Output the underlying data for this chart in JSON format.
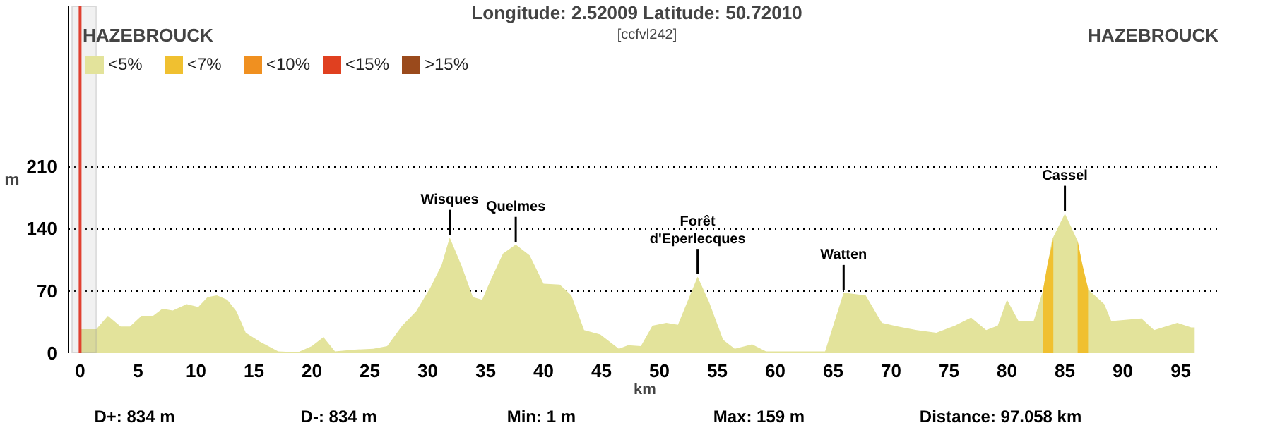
{
  "chart_data": {
    "type": "area",
    "title": "HAZEBROUCK",
    "subtitle": "HAZEBROUCK",
    "xlabel": "km",
    "ylabel": "m",
    "annotations": [
      "Longitude: 2.52009",
      "Latitude: 50.72010",
      "[ccfvl242]",
      "D+: 834 m",
      "D-: 834 m",
      "Min: 1 m",
      "Max: 159 m",
      "Distance: 97.058 km",
      {
        "text": "Wisques",
        "x": 31.9,
        "y": 130
      },
      {
        "text": "Quelmes",
        "x": 37.6,
        "y": 122
      },
      {
        "text": "Forêt\nd'Eperlecques",
        "x": 53.3,
        "y": 86
      },
      {
        "text": "Watten",
        "x": 65.9,
        "y": 68
      },
      {
        "text": "Cassel",
        "x": 85,
        "y": 157
      }
    ],
    "series": [
      {
        "name": "<5%",
        "color": "#e3e39b",
        "x": [
          0,
          0.4,
          1.4,
          2.4,
          3.5,
          4.3,
          5.3,
          6.3,
          7.1,
          8,
          9.2,
          10.2,
          11,
          11.8,
          12.7,
          13.5,
          14.3,
          15.5,
          17.1,
          18.8,
          20,
          21,
          22,
          23.7,
          25.3,
          26.5,
          27.8,
          29,
          30.2,
          31.2,
          31.9,
          32.9,
          33.9,
          34.7,
          35.5,
          36.5,
          37.6,
          38.8,
          40,
          41.4,
          42.4,
          43.5,
          44.9,
          46.5,
          47.3,
          48.4,
          49.4,
          50.6,
          51.6,
          53.3,
          54.3,
          55.5,
          56.5,
          58,
          59.2,
          61.2,
          64.3,
          65.9,
          67.8,
          69.2,
          70.6,
          72.2,
          73.9,
          75.5,
          76.9,
          78.2,
          79.2,
          80,
          81,
          82.3,
          83.1,
          83.9,
          85,
          86.1,
          86.9,
          88.4,
          89,
          91.6,
          92.7,
          94.7,
          95.9,
          96.2
        ],
        "values": [
          27,
          27,
          27,
          42,
          30,
          30,
          42,
          42,
          50,
          48,
          55,
          52,
          63,
          65,
          60,
          47,
          23,
          13,
          2,
          1,
          8,
          18,
          2,
          4,
          5,
          8,
          31,
          47,
          73,
          99,
          130,
          99,
          63,
          60,
          84,
          112,
          122,
          110,
          78,
          77,
          65,
          26,
          21,
          5,
          9,
          8,
          31,
          34,
          32,
          86,
          57,
          15,
          5,
          10,
          2,
          2,
          2,
          68,
          65,
          34,
          30,
          26,
          23,
          31,
          40,
          26,
          31,
          60,
          36,
          36,
          70,
          128,
          157,
          126,
          73,
          55,
          36,
          39,
          26,
          34,
          29,
          29
        ]
      },
      {
        "name": "<7%",
        "color": "#f0c030",
        "x": [
          83.1,
          83.5,
          84.0,
          84.05,
          86.1,
          86.5,
          87.0
        ],
        "values": [
          70,
          100,
          128,
          null,
          126,
          100,
          73
        ]
      },
      {
        "name": "<10%",
        "color": "#f09020"
      },
      {
        "name": "<15%",
        "color": "#e04020"
      },
      {
        "name": ">15%",
        "color": "#9a4a1c"
      }
    ],
    "xlim": [
      -1,
      98.5
    ],
    "ylim": [
      0,
      390
    ],
    "xticks": [
      0,
      5,
      10,
      15,
      20,
      25,
      30,
      35,
      40,
      45,
      50,
      55,
      60,
      65,
      70,
      75,
      80,
      85,
      90,
      95
    ],
    "yticks": [
      0,
      70,
      140,
      210
    ],
    "grid": "y",
    "legend": "top left",
    "ref_lines": [
      {
        "axis": "x",
        "value": 0,
        "color": "#e04030"
      }
    ],
    "bands": [
      {
        "axis": "x",
        "from": -0.7,
        "to": 1.4,
        "color": "#a0a0a0"
      }
    ]
  }
}
